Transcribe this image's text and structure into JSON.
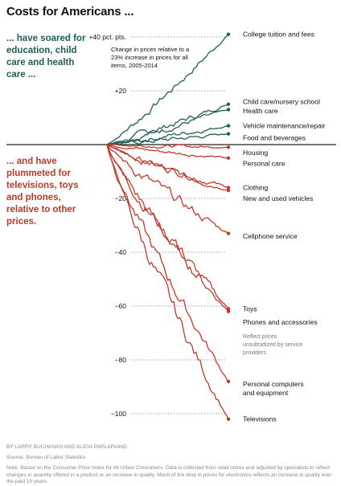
{
  "title": "Costs for Americans ...",
  "side_up": "... have soared for education, child care and health care ...",
  "side_down": "... and have plummeted for televisions, toys and phones, relative to other prices.",
  "byline": "By LARRY BUCHANAN and ALICIA PARLAPIANO",
  "source": "Source: Bureau of Labor Statistics",
  "note": "Note: Based on the Consumer Price Index for All Urban Consumers. Data is collected from retail stores and adjusted by specialists to reflect changes in quantity offered in a product or an increase in quality. Much of the drop in prices for electronics reflects an increase in quality over the past 10 years.",
  "colors": {
    "up": "#1f5e57",
    "down": "#c0392b",
    "axis": "#222222",
    "grid": "#888888",
    "text": "#111111"
  },
  "chart_data": {
    "type": "line",
    "annotation": "Change in prices relative to a 23% increase in prices for all items, 2005-2014",
    "x_range": [
      2005,
      2014
    ],
    "ylim": [
      -105,
      42
    ],
    "y_ticks": [
      {
        "value": 40,
        "label": "+40 pct. pts."
      },
      {
        "value": 20,
        "label": "+20"
      },
      {
        "value": -20,
        "label": "−20"
      },
      {
        "value": -40,
        "label": "−40"
      },
      {
        "value": -60,
        "label": "−60"
      },
      {
        "value": -80,
        "label": "−80"
      },
      {
        "value": -100,
        "label": "−100"
      }
    ],
    "series": [
      {
        "name": "College tuition and fees",
        "group": "up",
        "end": 41,
        "label_y": 41,
        "amp": 1.2
      },
      {
        "name": "Child care/nursery school",
        "group": "up",
        "end": 15,
        "label_y": 16,
        "amp": 1.0
      },
      {
        "name": "Health care",
        "group": "up",
        "end": 13,
        "label_y": 12.5,
        "amp": 0.9
      },
      {
        "name": "Vehicle maintenance/repair",
        "group": "up",
        "end": 7,
        "label_y": 7,
        "amp": 0.8
      },
      {
        "name": "Food and beverages",
        "group": "up",
        "end": 4,
        "label_y": 2.5,
        "amp": 0.7
      },
      {
        "name": "Housing",
        "group": "down",
        "end": -1,
        "label_y": -3,
        "amp": 0.5
      },
      {
        "name": "Personal care",
        "group": "down",
        "end": -5,
        "label_y": -7,
        "amp": 0.6
      },
      {
        "name": "Clothing",
        "group": "down",
        "end": -16,
        "label_y": -16,
        "amp": 1.2
      },
      {
        "name": "New and used vehicles",
        "group": "down",
        "end": -17,
        "label_y": -20,
        "amp": 1.0
      },
      {
        "name": "Cellphone service",
        "group": "down",
        "end": -33,
        "label_y": -34,
        "amp": 1.8
      },
      {
        "name": "Toys",
        "group": "down",
        "end": -61,
        "label_y": -61,
        "amp": 2.0
      },
      {
        "name": "Phones and accessories",
        "group": "down",
        "end": -62,
        "label_y": -66,
        "amp": 2.2
      },
      {
        "name": "Personal computers and equipment",
        "group": "down",
        "end": -88,
        "label_y": -89,
        "amp": 2.0
      },
      {
        "name": "Televisions",
        "group": "down",
        "end": -102,
        "label_y": -102,
        "amp": 2.5
      }
    ],
    "extra_label": {
      "text": "Reflect prices unsubsidized by service providers",
      "label_y": -71
    }
  }
}
